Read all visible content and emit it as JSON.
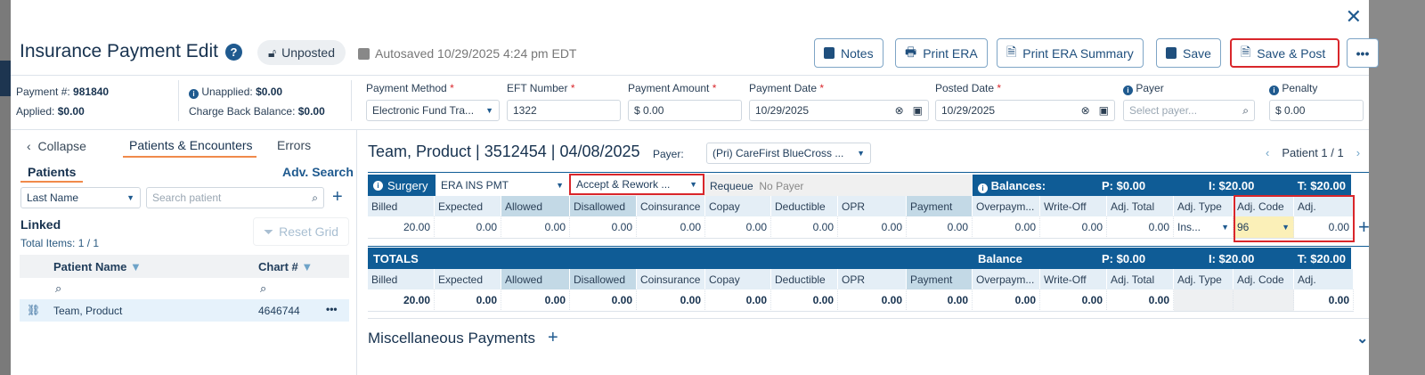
{
  "header": {
    "title": "Insurance Payment Edit",
    "status": "Unposted",
    "autosaved": "Autosaved 10/29/2025 4:24 pm EDT",
    "buttons": {
      "notes": "Notes",
      "print_era": "Print ERA",
      "print_summary": "Print ERA Summary",
      "save": "Save",
      "save_post": "Save & Post"
    }
  },
  "summary": {
    "payment_no_label": "Payment #:",
    "payment_no": "981840",
    "applied_label": "Applied:",
    "applied": "$0.00",
    "unapplied_label": "Unapplied:",
    "unapplied": "$0.00",
    "chargeback_label": "Charge Back Balance:",
    "chargeback": "$0.00"
  },
  "fields": {
    "payment_method": {
      "label": "Payment Method",
      "value": "Electronic Fund Tra..."
    },
    "eft": {
      "label": "EFT Number",
      "value": "1322"
    },
    "amount": {
      "label": "Payment Amount",
      "value": "$ 0.00"
    },
    "payment_date": {
      "label": "Payment Date",
      "value": "10/29/2025"
    },
    "posted_date": {
      "label": "Posted Date",
      "value": "10/29/2025"
    },
    "payer": {
      "label": "Payer",
      "placeholder": "Select payer..."
    },
    "penalty": {
      "label": "Penalty",
      "value": "$ 0.00"
    }
  },
  "left": {
    "collapse": "Collapse",
    "tabs": [
      "Patients & Encounters",
      "Errors"
    ],
    "subtab": "Patients",
    "adv_search": "Adv. Search",
    "search_by": "Last Name",
    "search_placeholder": "Search patient",
    "linked": "Linked",
    "total_items": "Total Items: 1 / 1",
    "reset_grid": "Reset Grid",
    "col_name": "Patient Name",
    "col_chart": "Chart #",
    "rows": [
      {
        "name": "Team, Product",
        "chart": "4646744"
      }
    ]
  },
  "encounter": {
    "title": "Team, Product | 3512454 | 04/08/2025",
    "payer_label": "Payer:",
    "payer": "(Pri) CareFirst BlueCross ...",
    "pager": "Patient 1 / 1",
    "service": "Surgery",
    "type": "ERA INS PMT",
    "action": "Accept & Rework ...",
    "requeue": "Requeue",
    "no_payer": "No Payer",
    "balances_label": "Balances:",
    "p": "P: $0.00",
    "i": "I: $20.00",
    "t": "T: $20.00",
    "columns": [
      "Billed",
      "Expected",
      "Allowed",
      "Disallowed",
      "Coinsurance",
      "Copay",
      "Deductible",
      "OPR",
      "Payment",
      "Overpaym...",
      "Write-Off",
      "Adj. Total",
      "Adj. Type",
      "Adj. Code",
      "Adj."
    ],
    "row": [
      "20.00",
      "0.00",
      "0.00",
      "0.00",
      "0.00",
      "0.00",
      "0.00",
      "0.00",
      "0.00",
      "0.00",
      "0.00",
      "0.00",
      "Ins...",
      "96",
      "0.00"
    ]
  },
  "totals": {
    "label": "TOTALS",
    "balance_label": "Balance",
    "p": "P: $0.00",
    "i": "I: $20.00",
    "t": "T: $20.00",
    "row": [
      "20.00",
      "0.00",
      "0.00",
      "0.00",
      "0.00",
      "0.00",
      "0.00",
      "0.00",
      "0.00",
      "0.00",
      "0.00",
      "0.00",
      "",
      "",
      "0.00"
    ]
  },
  "misc": {
    "label": "Miscellaneous Payments"
  },
  "colors": {
    "primary": "#0f5c96",
    "accent": "#f08a4b",
    "highlight": "#d9262b",
    "adj_code_bg": "#fbf0b8"
  }
}
